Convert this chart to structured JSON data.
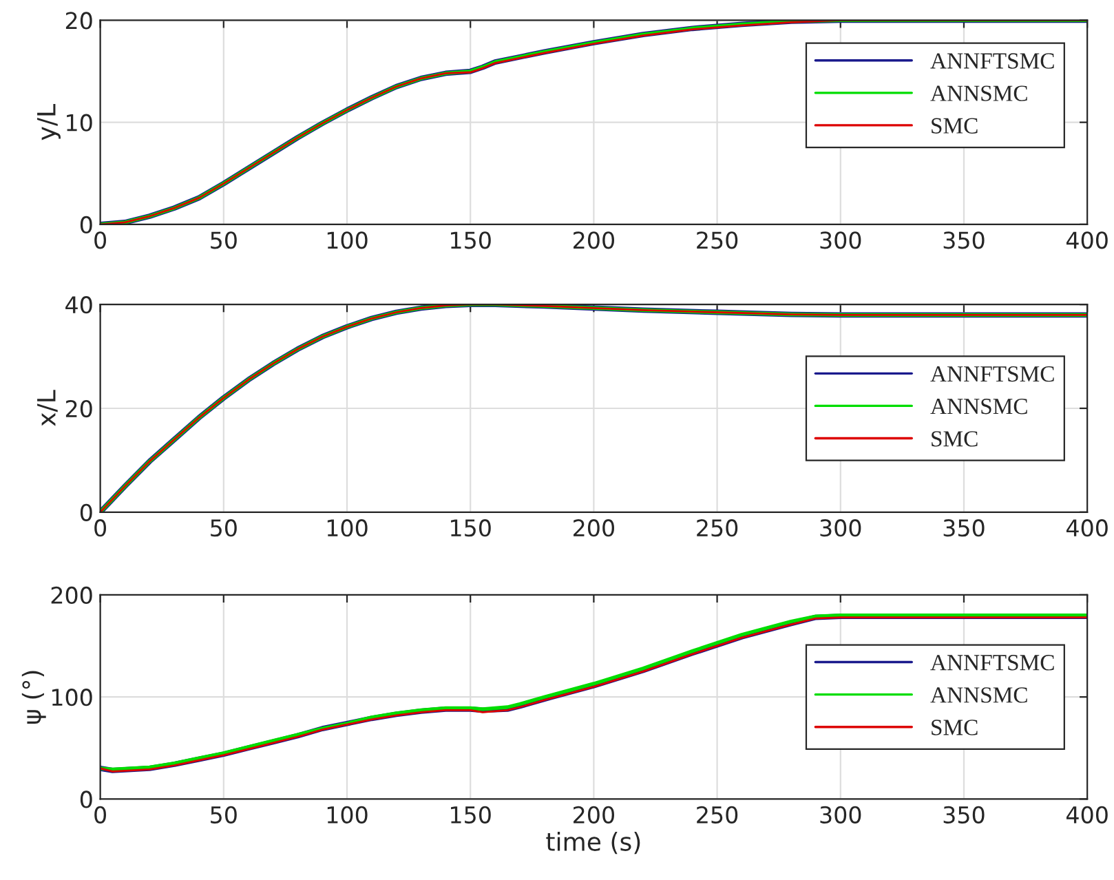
{
  "chart_data": [
    {
      "type": "line",
      "ylabel": "y/L",
      "xlim": [
        0,
        400
      ],
      "xticks": [
        0,
        50,
        100,
        150,
        200,
        250,
        300,
        350,
        400
      ],
      "ylim": [
        0,
        20
      ],
      "yticks": [
        0,
        10,
        20
      ],
      "grid": true,
      "legend": "top right",
      "x": [
        0,
        10,
        20,
        30,
        40,
        50,
        60,
        70,
        80,
        90,
        100,
        110,
        120,
        130,
        140,
        150,
        155,
        160,
        180,
        200,
        220,
        240,
        260,
        280,
        300,
        400
      ],
      "series": [
        {
          "name": "ANNFTSMC",
          "color": "#1a1a8c",
          "values": [
            0,
            0.2,
            0.8,
            1.6,
            2.6,
            4,
            5.5,
            7,
            8.5,
            9.9,
            11.2,
            12.4,
            13.5,
            14.3,
            14.8,
            15,
            15.4,
            15.9,
            16.9,
            17.8,
            18.6,
            19.2,
            19.6,
            19.9,
            20,
            20
          ]
        },
        {
          "name": "ANNSMC",
          "color": "#00dd00",
          "values": [
            0,
            0.2,
            0.8,
            1.6,
            2.6,
            4,
            5.5,
            7,
            8.5,
            9.9,
            11.2,
            12.4,
            13.5,
            14.3,
            14.8,
            15,
            15.4,
            15.9,
            16.9,
            17.8,
            18.6,
            19.2,
            19.6,
            19.9,
            20,
            20
          ]
        },
        {
          "name": "SMC",
          "color": "#dd0000",
          "values": [
            0,
            0.2,
            0.8,
            1.6,
            2.6,
            4,
            5.5,
            7,
            8.5,
            9.9,
            11.2,
            12.4,
            13.5,
            14.3,
            14.8,
            14.9,
            15.3,
            15.8,
            16.8,
            17.7,
            18.5,
            19.1,
            19.5,
            19.8,
            20,
            20
          ]
        }
      ]
    },
    {
      "type": "line",
      "ylabel": "x/L",
      "xlim": [
        0,
        400
      ],
      "xticks": [
        0,
        50,
        100,
        150,
        200,
        250,
        300,
        350,
        400
      ],
      "ylim": [
        0,
        40
      ],
      "yticks": [
        0,
        20,
        40
      ],
      "grid": true,
      "legend": "right",
      "x": [
        0,
        10,
        20,
        30,
        40,
        50,
        60,
        70,
        80,
        90,
        100,
        110,
        120,
        130,
        140,
        150,
        160,
        180,
        200,
        220,
        250,
        280,
        300,
        400
      ],
      "series": [
        {
          "name": "ANNFTSMC",
          "color": "#1a1a8c",
          "values": [
            0,
            5,
            9.8,
            14,
            18.2,
            22,
            25.5,
            28.6,
            31.4,
            33.8,
            35.7,
            37.3,
            38.5,
            39.3,
            39.8,
            40,
            40,
            39.7,
            39.3,
            38.9,
            38.5,
            38.1,
            38,
            38
          ]
        },
        {
          "name": "ANNSMC",
          "color": "#00dd00",
          "values": [
            0,
            5,
            9.8,
            14,
            18.2,
            22,
            25.5,
            28.6,
            31.4,
            33.8,
            35.7,
            37.3,
            38.5,
            39.3,
            39.8,
            40,
            40,
            39.7,
            39.3,
            38.9,
            38.5,
            38.1,
            38,
            38
          ]
        },
        {
          "name": "SMC",
          "color": "#dd0000",
          "values": [
            0,
            5,
            9.8,
            14,
            18.2,
            22,
            25.5,
            28.6,
            31.4,
            33.8,
            35.7,
            37.3,
            38.5,
            39.3,
            39.8,
            40,
            40,
            39.7,
            39.3,
            38.9,
            38.5,
            38.1,
            38,
            38
          ]
        }
      ]
    },
    {
      "type": "line",
      "ylabel": "ψ (°)",
      "xlabel": "time (s)",
      "xlim": [
        0,
        400
      ],
      "xticks": [
        0,
        50,
        100,
        150,
        200,
        250,
        300,
        350,
        400
      ],
      "ylim": [
        0,
        200
      ],
      "yticks": [
        0,
        100,
        200
      ],
      "grid": true,
      "legend": "right",
      "x": [
        0,
        5,
        20,
        30,
        40,
        50,
        60,
        70,
        80,
        90,
        100,
        110,
        120,
        130,
        140,
        150,
        155,
        165,
        170,
        180,
        200,
        220,
        240,
        260,
        280,
        290,
        300,
        400
      ],
      "series": [
        {
          "name": "ANNFTSMC",
          "color": "#1a1a8c",
          "values": [
            30,
            28,
            30,
            34,
            39,
            44,
            50,
            56,
            62,
            69,
            74,
            79,
            83,
            86,
            88,
            88,
            87,
            88,
            91,
            98,
            111,
            126,
            143,
            159,
            172,
            178,
            179,
            179
          ]
        },
        {
          "name": "ANNSMC",
          "color": "#00dd00",
          "values": [
            30,
            29,
            31,
            35,
            40,
            45,
            51,
            57,
            63,
            69,
            74,
            80,
            84,
            87,
            89,
            89,
            88,
            90,
            93,
            100,
            113,
            128,
            145,
            161,
            174,
            179,
            180,
            180
          ]
        },
        {
          "name": "SMC",
          "color": "#dd0000",
          "values": [
            30,
            27,
            29,
            33,
            38,
            43,
            49,
            55,
            61,
            68,
            73,
            78,
            82,
            85,
            87,
            87,
            85,
            87,
            90,
            97,
            110,
            125,
            142,
            158,
            171,
            177,
            178,
            178
          ]
        }
      ]
    }
  ]
}
